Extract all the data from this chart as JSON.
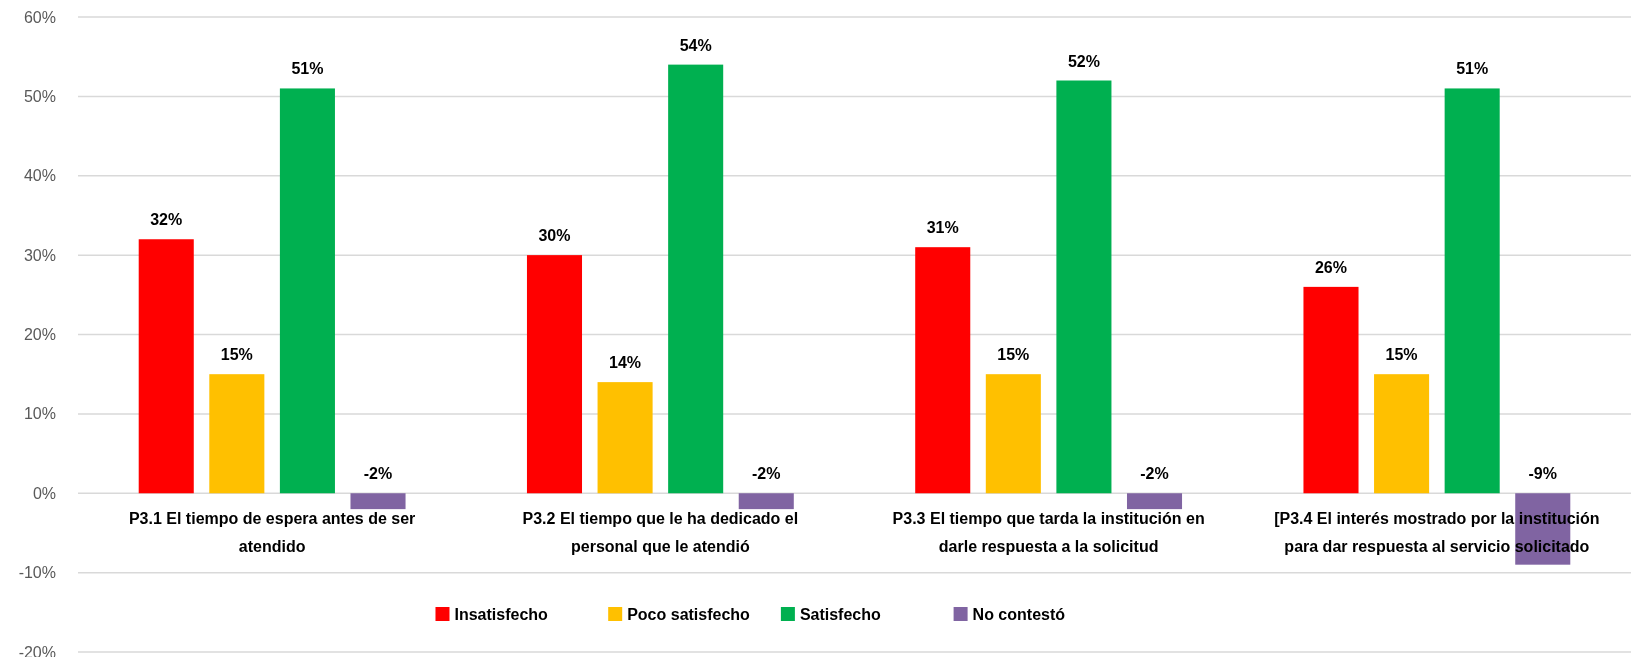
{
  "chart_data": {
    "type": "bar",
    "categories": [
      "P3.1 El tiempo de espera antes de ser atendido",
      "P3.2 El tiempo que le ha dedicado el personal que le atendió",
      "P3.3 El tiempo que tarda la institución en darle respuesta a la solicitud",
      "[P3.4 El interés mostrado por la institución para dar respuesta al servicio solicitado"
    ],
    "series": [
      {
        "name": "Insatisfecho",
        "color": "#ff0000",
        "values": [
          32,
          30,
          31,
          26
        ],
        "value_labels": [
          "32%",
          "30%",
          "31%",
          "26%"
        ]
      },
      {
        "name": "Poco satisfecho",
        "color": "#ffc000",
        "values": [
          15,
          14,
          15,
          15
        ],
        "value_labels": [
          "15%",
          "14%",
          "15%",
          "15%"
        ]
      },
      {
        "name": "Satisfecho",
        "color": "#00b050",
        "values": [
          51,
          54,
          52,
          51
        ],
        "value_labels": [
          "51%",
          "54%",
          "52%",
          "51%"
        ]
      },
      {
        "name": "No contestó",
        "color": "#8064a2",
        "values": [
          -2,
          -2,
          -2,
          -9
        ],
        "value_labels": [
          "-2%",
          "-2%",
          "-2%",
          "-9%"
        ]
      }
    ],
    "ylim": [
      -20,
      60
    ],
    "yticks": [
      {
        "value": -20,
        "label": "-20%"
      },
      {
        "value": -10,
        "label": "-10%"
      },
      {
        "value": 0,
        "label": "0%"
      },
      {
        "value": 10,
        "label": "10%"
      },
      {
        "value": 20,
        "label": "20%"
      },
      {
        "value": 30,
        "label": "30%"
      },
      {
        "value": 40,
        "label": "40%"
      },
      {
        "value": 50,
        "label": "50%"
      },
      {
        "value": 60,
        "label": "60%"
      }
    ],
    "grid": "y",
    "legend": "bottom"
  }
}
